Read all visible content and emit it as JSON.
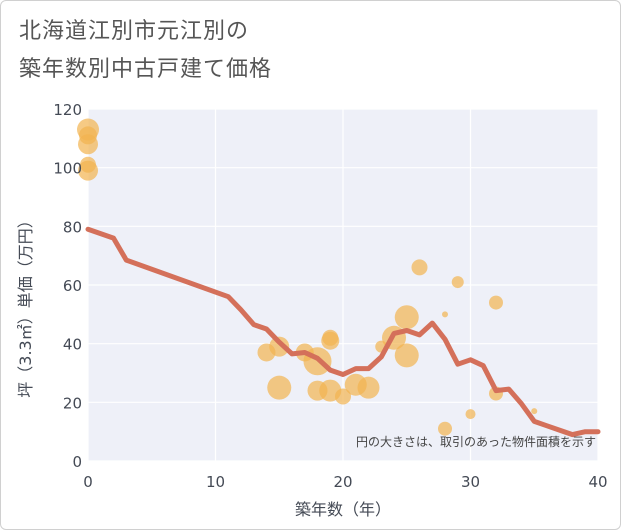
{
  "title_line1": "北海道江別市元江別の",
  "title_line2": "築年数別中古戸建て価格",
  "chart_data": {
    "type": "scatter",
    "title": "北海道江別市元江別の築年数別中古戸建て価格",
    "xlabel": "築年数（年）",
    "ylabel": "坪（3.3㎡）単価（万円）",
    "xlim": [
      0,
      40
    ],
    "ylim": [
      0,
      120
    ],
    "x_ticks": [
      0,
      10,
      20,
      30,
      40
    ],
    "y_ticks": [
      0,
      20,
      40,
      60,
      80,
      100,
      120
    ],
    "grid": true,
    "note": "円の大きさは、取引のあった物件面積を示す",
    "colors": {
      "bubble": "#f2b350",
      "line": "#d4705a",
      "plot_bg": "#eef0f8",
      "grid": "#ffffff"
    },
    "series": [
      {
        "type": "bubble",
        "points": [
          {
            "x": 0,
            "y": 113,
            "s": 11
          },
          {
            "x": 0,
            "y": 111,
            "s": 9
          },
          {
            "x": 0,
            "y": 108,
            "s": 10
          },
          {
            "x": 0,
            "y": 101,
            "s": 8
          },
          {
            "x": 0,
            "y": 99,
            "s": 10
          },
          {
            "x": 14,
            "y": 37,
            "s": 9
          },
          {
            "x": 15,
            "y": 39,
            "s": 10
          },
          {
            "x": 15,
            "y": 25,
            "s": 12
          },
          {
            "x": 17,
            "y": 37,
            "s": 9
          },
          {
            "x": 18,
            "y": 34,
            "s": 14
          },
          {
            "x": 18,
            "y": 24,
            "s": 10
          },
          {
            "x": 19,
            "y": 41,
            "s": 9
          },
          {
            "x": 19,
            "y": 42,
            "s": 8
          },
          {
            "x": 19,
            "y": 24,
            "s": 11
          },
          {
            "x": 20,
            "y": 22,
            "s": 8
          },
          {
            "x": 21,
            "y": 26,
            "s": 11
          },
          {
            "x": 22,
            "y": 25,
            "s": 11
          },
          {
            "x": 23,
            "y": 39,
            "s": 6
          },
          {
            "x": 24,
            "y": 42,
            "s": 12
          },
          {
            "x": 25,
            "y": 49,
            "s": 12
          },
          {
            "x": 25,
            "y": 36,
            "s": 12
          },
          {
            "x": 26,
            "y": 66,
            "s": 8
          },
          {
            "x": 28,
            "y": 50,
            "s": 3
          },
          {
            "x": 28,
            "y": 11,
            "s": 7
          },
          {
            "x": 29,
            "y": 61,
            "s": 6
          },
          {
            "x": 30,
            "y": 16,
            "s": 5
          },
          {
            "x": 32,
            "y": 54,
            "s": 7
          },
          {
            "x": 32,
            "y": 23,
            "s": 7
          },
          {
            "x": 35,
            "y": 17,
            "s": 3
          }
        ]
      },
      {
        "type": "line",
        "x": [
          0,
          2,
          3,
          11,
          12,
          13,
          14,
          15,
          16,
          17,
          18,
          19,
          20,
          21,
          22,
          23,
          24,
          25,
          26,
          27,
          28,
          29,
          30,
          31,
          32,
          33,
          34,
          35,
          36,
          37,
          38,
          39,
          40
        ],
        "y": [
          79,
          76,
          68.5,
          56,
          51.5,
          46.5,
          45,
          40.5,
          36.5,
          37,
          35,
          31,
          29.5,
          31.5,
          31.5,
          35.5,
          43.5,
          44.5,
          43,
          47,
          41.5,
          33,
          34.5,
          32.5,
          24,
          24.5,
          19.5,
          13.5,
          12,
          10.5,
          9,
          10,
          10
        ]
      }
    ]
  }
}
